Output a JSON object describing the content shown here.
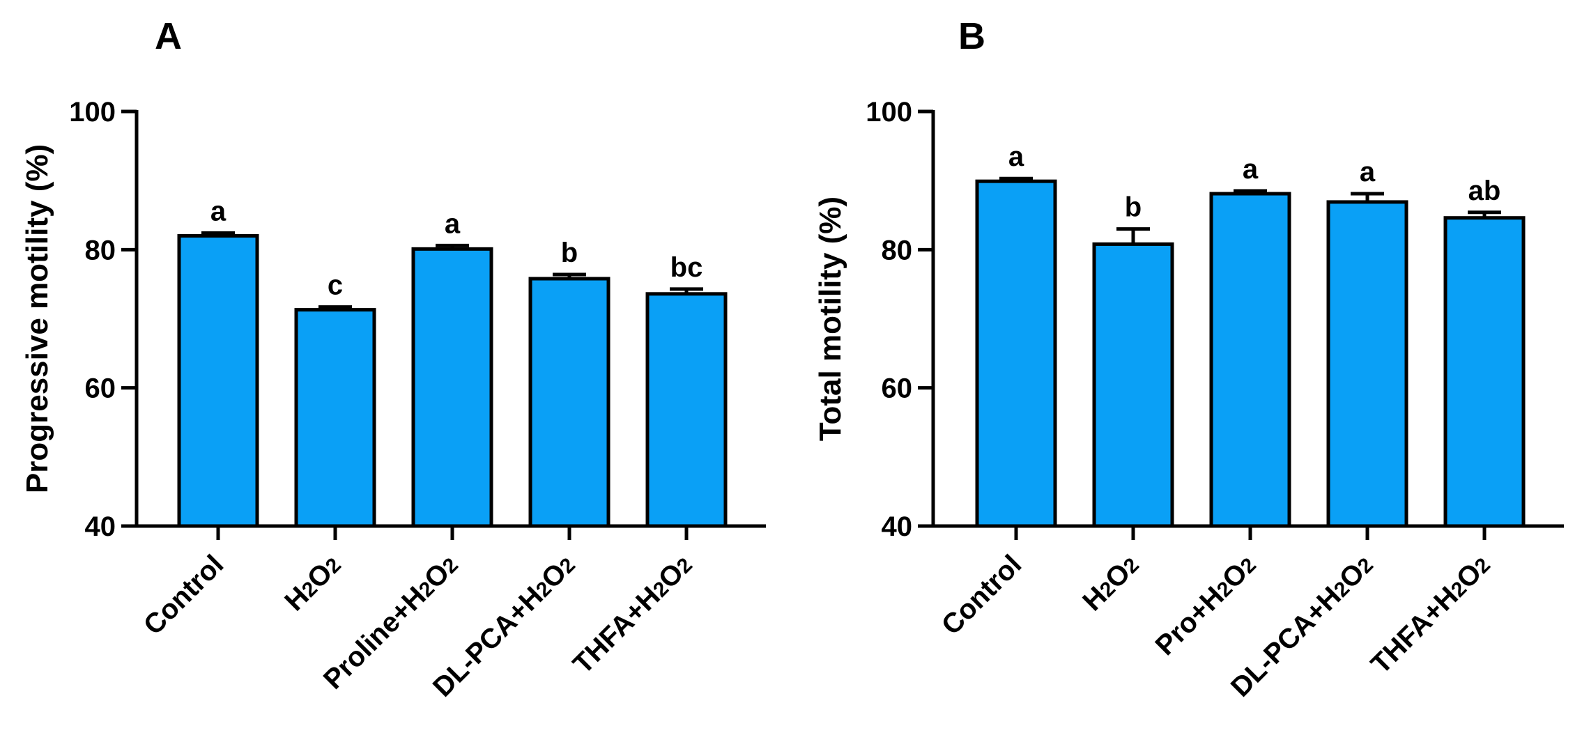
{
  "chart_data": [
    {
      "type": "bar",
      "panel": "A",
      "ylabel": "Progressive motility (%)",
      "xlabel": "",
      "ylim": [
        40,
        100
      ],
      "yticks": [
        40,
        60,
        80,
        100
      ],
      "categories": [
        {
          "base": "Control",
          "h2o2": false
        },
        {
          "base": "",
          "h2o2": true
        },
        {
          "base": "Proline+",
          "h2o2": true
        },
        {
          "base": "DL-PCA+",
          "h2o2": true
        },
        {
          "base": "THFA+",
          "h2o2": true
        }
      ],
      "values": [
        82,
        71.3,
        80.1,
        75.8,
        73.6
      ],
      "errors": [
        0.4,
        0.4,
        0.5,
        0.6,
        0.7
      ],
      "significance": [
        "a",
        "c",
        "a",
        "b",
        "bc"
      ],
      "color": "#0aa0f6"
    },
    {
      "type": "bar",
      "panel": "B",
      "ylabel": "Total motility (%)",
      "xlabel": "",
      "ylim": [
        40,
        100
      ],
      "yticks": [
        40,
        60,
        80,
        100
      ],
      "categories": [
        {
          "base": "Control",
          "h2o2": false
        },
        {
          "base": "",
          "h2o2": true
        },
        {
          "base": "Pro+",
          "h2o2": true
        },
        {
          "base": "DL-PCA+",
          "h2o2": true
        },
        {
          "base": "THFA+",
          "h2o2": true
        }
      ],
      "values": [
        89.9,
        80.8,
        88.1,
        86.9,
        84.6
      ],
      "errors": [
        0.4,
        2.2,
        0.4,
        1.2,
        0.8
      ],
      "significance": [
        "a",
        "b",
        "a",
        "a",
        "ab"
      ],
      "color": "#0aa0f6"
    }
  ],
  "h2o2_text": {
    "h": "H",
    "two": "2",
    "o": "O"
  }
}
